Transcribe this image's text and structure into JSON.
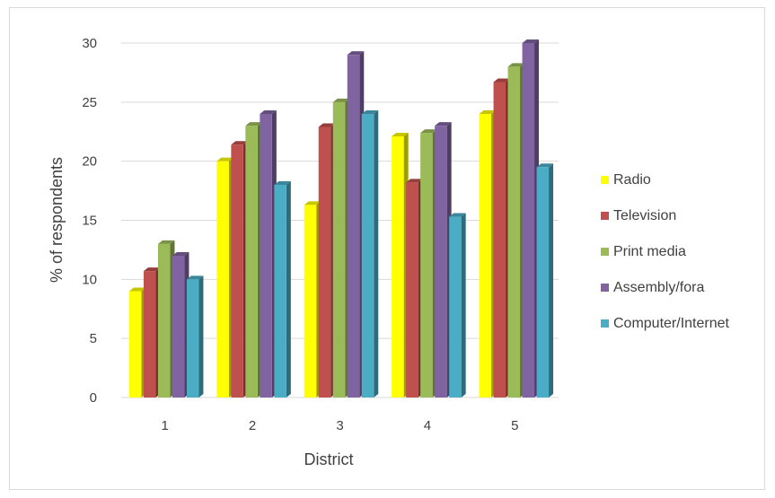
{
  "chart_data": {
    "type": "bar",
    "title": "",
    "xlabel": "District",
    "ylabel": "% of respondents",
    "categories": [
      "1",
      "2",
      "3",
      "4",
      "5"
    ],
    "ylim": [
      0,
      30
    ],
    "yticks": [
      "0",
      "5",
      "10",
      "15",
      "20",
      "25",
      "30"
    ],
    "grid": true,
    "legend_position": "right",
    "style": "3d-clustered-column",
    "series": [
      {
        "name": "Radio",
        "color": "#ffff00",
        "values": [
          9,
          20,
          16.3,
          22.1,
          24
        ]
      },
      {
        "name": "Television",
        "color": "#c0504d",
        "values": [
          10.7,
          21.4,
          22.9,
          18.2,
          26.7
        ]
      },
      {
        "name": "Print media",
        "color": "#9bbb59",
        "values": [
          13,
          23,
          25,
          22.4,
          28
        ]
      },
      {
        "name": "Assembly/fora",
        "color": "#8064a2",
        "values": [
          12,
          24,
          29,
          23,
          30
        ]
      },
      {
        "name": "Computer/Internet",
        "color": "#4bacc6",
        "values": [
          10,
          18,
          24,
          15.3,
          19.5
        ]
      }
    ]
  }
}
